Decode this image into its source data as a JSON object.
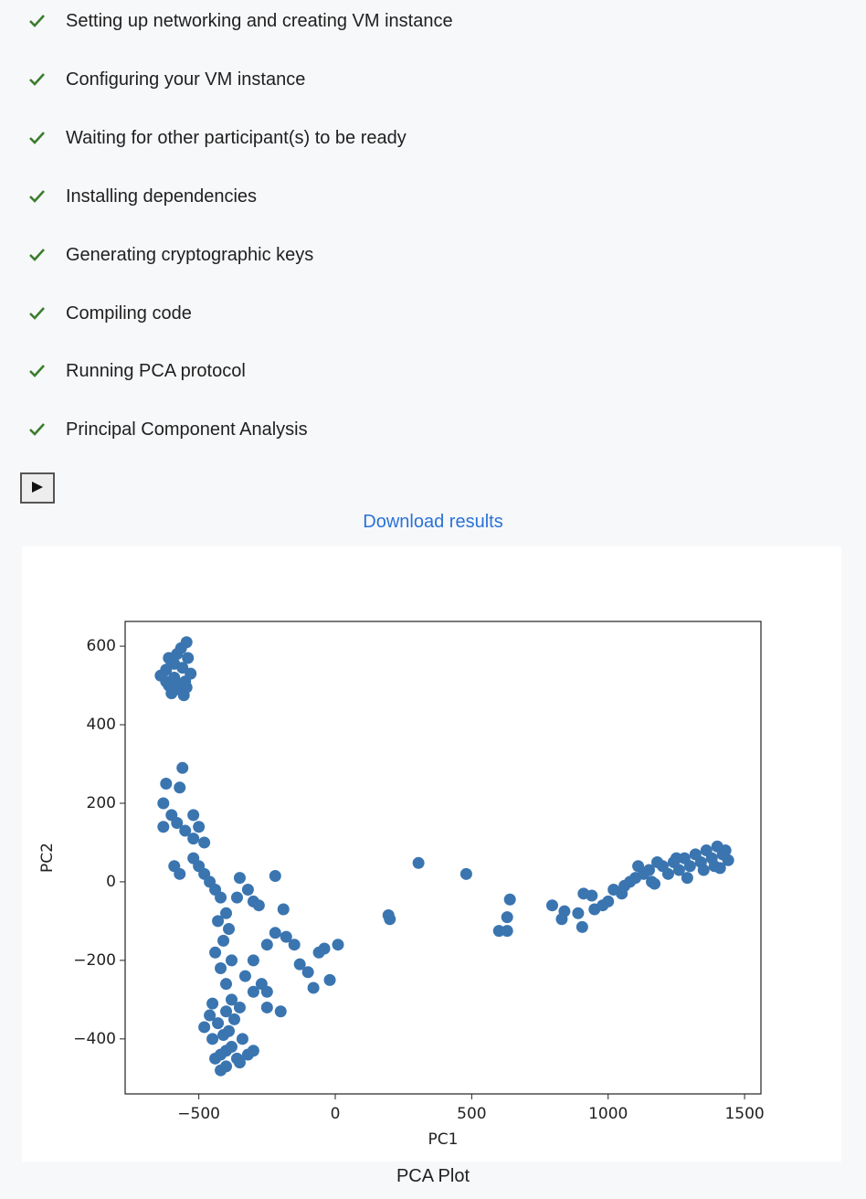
{
  "checklist": [
    "Setting up networking and creating VM instance",
    "Configuring your VM instance",
    "Waiting for other participant(s) to be ready",
    "Installing dependencies",
    "Generating cryptographic keys",
    "Compiling code",
    "Running PCA protocol",
    "Principal Component Analysis"
  ],
  "download_link": "Download results",
  "caption": "PCA Plot",
  "chart_data": {
    "type": "scatter",
    "x_label": "PC1",
    "y_label": "PC2",
    "xlim": [
      -770,
      1560
    ],
    "ylim": [
      -540,
      663
    ],
    "xticks": [
      {
        "value": -500,
        "label": "−500"
      },
      0,
      500,
      1000,
      1500
    ],
    "yticks": [
      {
        "value": -400,
        "label": "−400"
      },
      {
        "value": -200,
        "label": "−200"
      },
      0,
      200,
      400,
      600
    ],
    "grid": false,
    "x": [
      -640,
      -620,
      -610,
      -600,
      -590,
      -580,
      -570,
      -560,
      -550,
      -540,
      -530,
      -545,
      -555,
      -600,
      -620,
      -580,
      -565,
      -590,
      -610,
      -545,
      -630,
      -620,
      -600,
      -580,
      -560,
      -570,
      -550,
      -520,
      -500,
      -480,
      -520,
      -630,
      -590,
      -570,
      -520,
      -500,
      -480,
      -460,
      -440,
      -420,
      -400,
      -430,
      -410,
      -390,
      -440,
      -420,
      -400,
      -380,
      -360,
      -350,
      -320,
      -300,
      -280,
      -250,
      -220,
      -220,
      -190,
      -180,
      -150,
      -130,
      -100,
      -80,
      -60,
      -40,
      -20,
      10,
      -380,
      -350,
      -300,
      -270,
      -250,
      -200,
      -250,
      -330,
      -300,
      -400,
      -430,
      -450,
      -420,
      -400,
      -380,
      -360,
      -340,
      -320,
      -440,
      -460,
      -410,
      -390,
      -450,
      -370,
      -420,
      -300,
      -480,
      -350,
      -400,
      200,
      195,
      305,
      480,
      600,
      630,
      630,
      640,
      795,
      840,
      830,
      890,
      905,
      910,
      940,
      950,
      980,
      1000,
      1020,
      1050,
      1060,
      1080,
      1100,
      1110,
      1130,
      1150,
      1170,
      1200,
      1220,
      1240,
      1260,
      1280,
      1300,
      1320,
      1340,
      1360,
      1380,
      1400,
      1420,
      1440,
      1430,
      1410,
      1290,
      1250,
      1350,
      1390,
      1180,
      1160
    ],
    "series": [
      {
        "color": "#3a75b0",
        "values": [
          525,
          540,
          500,
          560,
          520,
          580,
          490,
          545,
          510,
          570,
          530,
          610,
          475,
          480,
          510,
          505,
          595,
          555,
          570,
          495,
          200,
          250,
          170,
          150,
          290,
          240,
          130,
          110,
          140,
          100,
          170,
          140,
          40,
          20,
          60,
          40,
          20,
          0,
          -20,
          -40,
          -80,
          -100,
          -150,
          -120,
          -180,
          -220,
          -260,
          -200,
          -40,
          10,
          -20,
          -50,
          -60,
          -160,
          15,
          -130,
          -70,
          -140,
          -160,
          -210,
          -230,
          -270,
          -180,
          -170,
          -250,
          -160,
          -300,
          -320,
          -280,
          -260,
          -320,
          -330,
          -280,
          -240,
          -200,
          -330,
          -360,
          -400,
          -440,
          -470,
          -420,
          -450,
          -400,
          -440,
          -450,
          -340,
          -390,
          -380,
          -310,
          -350,
          -480,
          -430,
          -370,
          -460,
          -430,
          -95,
          -85,
          48,
          20,
          -125,
          -125,
          -90,
          -45,
          -60,
          -75,
          -95,
          -80,
          -115,
          -30,
          -35,
          -70,
          -60,
          -50,
          -20,
          -30,
          -10,
          0,
          10,
          40,
          20,
          30,
          -5,
          40,
          20,
          50,
          30,
          60,
          40,
          70,
          50,
          80,
          60,
          90,
          70,
          55,
          80,
          35,
          10,
          60,
          30,
          40,
          50,
          0
        ]
      }
    ]
  }
}
